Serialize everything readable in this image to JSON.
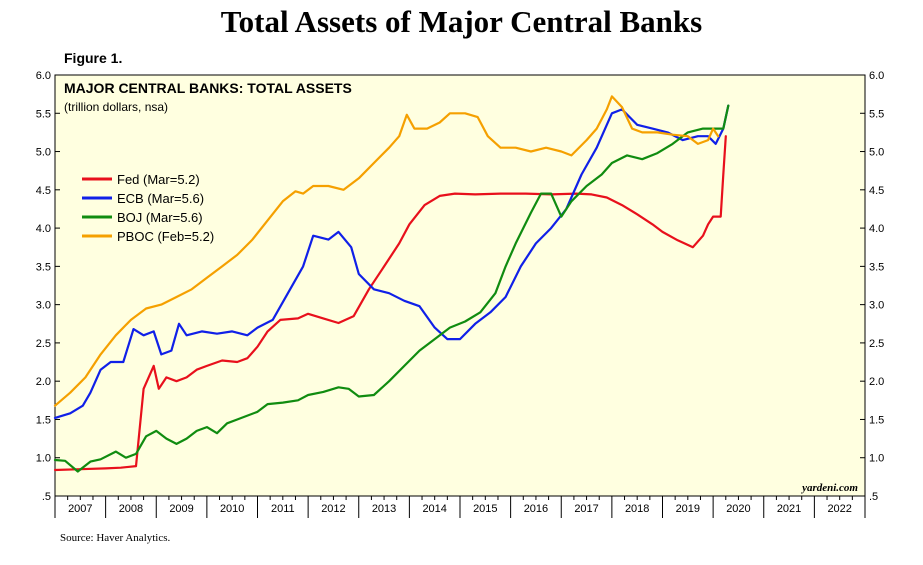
{
  "page": {
    "title": "Total Assets of Major Central Banks",
    "figure_label": "Figure 1.",
    "source": "Source: Haver Analytics."
  },
  "chart_data": {
    "type": "line",
    "title": "MAJOR CENTRAL BANKS: TOTAL ASSETS",
    "subtitle": "(trillion dollars, nsa)",
    "watermark": "yardeni.com",
    "xlabel": "",
    "ylabel": "",
    "xlim": [
      2007,
      2023
    ],
    "ylim": [
      0.5,
      6.0
    ],
    "yticks": [
      0.5,
      1.0,
      1.5,
      2.0,
      2.5,
      3.0,
      3.5,
      4.0,
      4.5,
      5.0,
      5.5,
      6.0
    ],
    "ytick_labels": [
      ".5",
      "1.0",
      "1.5",
      "2.0",
      "2.5",
      "3.0",
      "3.5",
      "4.0",
      "4.5",
      "5.0",
      "5.5",
      "6.0"
    ],
    "xtick_labels": [
      "2007",
      "2008",
      "2009",
      "2010",
      "2011",
      "2012",
      "2013",
      "2014",
      "2015",
      "2016",
      "2017",
      "2018",
      "2019",
      "2020",
      "2021",
      "2022"
    ],
    "legend_position": "middle-left",
    "background": "#ffffe0",
    "series": [
      {
        "name": "Fed (Mar=5.2)",
        "color": "#e8101c",
        "points": [
          [
            2007.0,
            0.84
          ],
          [
            2007.5,
            0.85
          ],
          [
            2008.0,
            0.86
          ],
          [
            2008.3,
            0.87
          ],
          [
            2008.6,
            0.89
          ],
          [
            2008.75,
            1.9
          ],
          [
            2008.95,
            2.2
          ],
          [
            2009.05,
            1.9
          ],
          [
            2009.2,
            2.05
          ],
          [
            2009.4,
            2.0
          ],
          [
            2009.6,
            2.05
          ],
          [
            2009.8,
            2.15
          ],
          [
            2010.0,
            2.2
          ],
          [
            2010.3,
            2.27
          ],
          [
            2010.6,
            2.25
          ],
          [
            2010.8,
            2.3
          ],
          [
            2011.0,
            2.45
          ],
          [
            2011.2,
            2.65
          ],
          [
            2011.45,
            2.8
          ],
          [
            2011.8,
            2.82
          ],
          [
            2012.0,
            2.88
          ],
          [
            2012.3,
            2.82
          ],
          [
            2012.6,
            2.76
          ],
          [
            2012.9,
            2.85
          ],
          [
            2013.2,
            3.2
          ],
          [
            2013.5,
            3.5
          ],
          [
            2013.8,
            3.8
          ],
          [
            2014.0,
            4.05
          ],
          [
            2014.3,
            4.3
          ],
          [
            2014.6,
            4.42
          ],
          [
            2014.9,
            4.45
          ],
          [
            2015.3,
            4.44
          ],
          [
            2015.8,
            4.45
          ],
          [
            2016.3,
            4.45
          ],
          [
            2016.8,
            4.44
          ],
          [
            2017.3,
            4.45
          ],
          [
            2017.6,
            4.44
          ],
          [
            2017.9,
            4.4
          ],
          [
            2018.2,
            4.3
          ],
          [
            2018.5,
            4.18
          ],
          [
            2018.8,
            4.05
          ],
          [
            2019.0,
            3.95
          ],
          [
            2019.3,
            3.84
          ],
          [
            2019.6,
            3.75
          ],
          [
            2019.8,
            3.9
          ],
          [
            2019.9,
            4.05
          ],
          [
            2020.0,
            4.15
          ],
          [
            2020.15,
            4.15
          ],
          [
            2020.2,
            4.7
          ],
          [
            2020.25,
            5.2
          ]
        ]
      },
      {
        "name": "ECB (Mar=5.6)",
        "color": "#1020e8",
        "points": [
          [
            2007.0,
            1.52
          ],
          [
            2007.3,
            1.58
          ],
          [
            2007.55,
            1.68
          ],
          [
            2007.7,
            1.85
          ],
          [
            2007.9,
            2.15
          ],
          [
            2008.1,
            2.25
          ],
          [
            2008.35,
            2.25
          ],
          [
            2008.55,
            2.68
          ],
          [
            2008.75,
            2.6
          ],
          [
            2008.95,
            2.65
          ],
          [
            2009.1,
            2.35
          ],
          [
            2009.3,
            2.4
          ],
          [
            2009.45,
            2.75
          ],
          [
            2009.6,
            2.6
          ],
          [
            2009.9,
            2.65
          ],
          [
            2010.2,
            2.62
          ],
          [
            2010.5,
            2.65
          ],
          [
            2010.8,
            2.6
          ],
          [
            2011.0,
            2.7
          ],
          [
            2011.3,
            2.8
          ],
          [
            2011.6,
            3.15
          ],
          [
            2011.9,
            3.5
          ],
          [
            2012.1,
            3.9
          ],
          [
            2012.4,
            3.85
          ],
          [
            2012.6,
            3.95
          ],
          [
            2012.85,
            3.75
          ],
          [
            2013.0,
            3.4
          ],
          [
            2013.3,
            3.2
          ],
          [
            2013.6,
            3.15
          ],
          [
            2013.9,
            3.05
          ],
          [
            2014.2,
            2.98
          ],
          [
            2014.5,
            2.7
          ],
          [
            2014.75,
            2.55
          ],
          [
            2015.0,
            2.55
          ],
          [
            2015.3,
            2.75
          ],
          [
            2015.6,
            2.9
          ],
          [
            2015.9,
            3.1
          ],
          [
            2016.2,
            3.5
          ],
          [
            2016.5,
            3.8
          ],
          [
            2016.8,
            4.0
          ],
          [
            2017.1,
            4.25
          ],
          [
            2017.4,
            4.7
          ],
          [
            2017.7,
            5.05
          ],
          [
            2018.0,
            5.5
          ],
          [
            2018.2,
            5.55
          ],
          [
            2018.5,
            5.35
          ],
          [
            2018.8,
            5.3
          ],
          [
            2019.1,
            5.25
          ],
          [
            2019.4,
            5.15
          ],
          [
            2019.7,
            5.2
          ],
          [
            2019.9,
            5.2
          ],
          [
            2020.05,
            5.1
          ],
          [
            2020.2,
            5.3
          ],
          [
            2020.3,
            5.6
          ]
        ]
      },
      {
        "name": "BOJ (Mar=5.6)",
        "color": "#108c10",
        "points": [
          [
            2007.0,
            0.97
          ],
          [
            2007.2,
            0.96
          ],
          [
            2007.45,
            0.82
          ],
          [
            2007.7,
            0.95
          ],
          [
            2007.9,
            0.98
          ],
          [
            2008.2,
            1.08
          ],
          [
            2008.4,
            1.0
          ],
          [
            2008.6,
            1.05
          ],
          [
            2008.8,
            1.28
          ],
          [
            2009.0,
            1.35
          ],
          [
            2009.2,
            1.25
          ],
          [
            2009.4,
            1.18
          ],
          [
            2009.6,
            1.25
          ],
          [
            2009.8,
            1.35
          ],
          [
            2010.0,
            1.4
          ],
          [
            2010.2,
            1.32
          ],
          [
            2010.4,
            1.45
          ],
          [
            2010.6,
            1.5
          ],
          [
            2010.8,
            1.55
          ],
          [
            2011.0,
            1.6
          ],
          [
            2011.2,
            1.7
          ],
          [
            2011.5,
            1.72
          ],
          [
            2011.8,
            1.75
          ],
          [
            2012.0,
            1.82
          ],
          [
            2012.3,
            1.86
          ],
          [
            2012.6,
            1.92
          ],
          [
            2012.8,
            1.9
          ],
          [
            2013.0,
            1.8
          ],
          [
            2013.3,
            1.82
          ],
          [
            2013.6,
            2.0
          ],
          [
            2013.9,
            2.2
          ],
          [
            2014.2,
            2.4
          ],
          [
            2014.5,
            2.55
          ],
          [
            2014.8,
            2.7
          ],
          [
            2015.1,
            2.78
          ],
          [
            2015.4,
            2.9
          ],
          [
            2015.7,
            3.15
          ],
          [
            2015.9,
            3.5
          ],
          [
            2016.1,
            3.8
          ],
          [
            2016.4,
            4.2
          ],
          [
            2016.6,
            4.45
          ],
          [
            2016.8,
            4.45
          ],
          [
            2017.0,
            4.15
          ],
          [
            2017.2,
            4.35
          ],
          [
            2017.5,
            4.55
          ],
          [
            2017.8,
            4.7
          ],
          [
            2018.0,
            4.85
          ],
          [
            2018.3,
            4.95
          ],
          [
            2018.6,
            4.9
          ],
          [
            2018.9,
            4.98
          ],
          [
            2019.2,
            5.1
          ],
          [
            2019.5,
            5.25
          ],
          [
            2019.8,
            5.3
          ],
          [
            2020.0,
            5.3
          ],
          [
            2020.2,
            5.3
          ],
          [
            2020.3,
            5.6
          ]
        ]
      },
      {
        "name": "PBOC (Feb=5.2)",
        "color": "#f5a000",
        "points": [
          [
            2007.0,
            1.68
          ],
          [
            2007.3,
            1.85
          ],
          [
            2007.6,
            2.05
          ],
          [
            2007.9,
            2.35
          ],
          [
            2008.2,
            2.6
          ],
          [
            2008.5,
            2.8
          ],
          [
            2008.8,
            2.95
          ],
          [
            2009.1,
            3.0
          ],
          [
            2009.4,
            3.1
          ],
          [
            2009.7,
            3.2
          ],
          [
            2010.0,
            3.35
          ],
          [
            2010.3,
            3.5
          ],
          [
            2010.6,
            3.65
          ],
          [
            2010.9,
            3.85
          ],
          [
            2011.2,
            4.1
          ],
          [
            2011.5,
            4.35
          ],
          [
            2011.75,
            4.48
          ],
          [
            2011.9,
            4.45
          ],
          [
            2012.1,
            4.55
          ],
          [
            2012.4,
            4.55
          ],
          [
            2012.7,
            4.5
          ],
          [
            2013.0,
            4.65
          ],
          [
            2013.3,
            4.85
          ],
          [
            2013.6,
            5.05
          ],
          [
            2013.8,
            5.2
          ],
          [
            2013.95,
            5.48
          ],
          [
            2014.1,
            5.3
          ],
          [
            2014.35,
            5.3
          ],
          [
            2014.6,
            5.38
          ],
          [
            2014.8,
            5.5
          ],
          [
            2015.1,
            5.5
          ],
          [
            2015.35,
            5.45
          ],
          [
            2015.55,
            5.2
          ],
          [
            2015.8,
            5.05
          ],
          [
            2016.1,
            5.05
          ],
          [
            2016.4,
            5.0
          ],
          [
            2016.7,
            5.05
          ],
          [
            2017.0,
            5.0
          ],
          [
            2017.2,
            4.95
          ],
          [
            2017.5,
            5.15
          ],
          [
            2017.7,
            5.3
          ],
          [
            2017.9,
            5.55
          ],
          [
            2018.0,
            5.72
          ],
          [
            2018.2,
            5.58
          ],
          [
            2018.4,
            5.3
          ],
          [
            2018.6,
            5.25
          ],
          [
            2018.9,
            5.25
          ],
          [
            2019.2,
            5.22
          ],
          [
            2019.5,
            5.2
          ],
          [
            2019.7,
            5.1
          ],
          [
            2019.9,
            5.15
          ],
          [
            2020.0,
            5.3
          ],
          [
            2020.1,
            5.2
          ]
        ]
      }
    ]
  }
}
